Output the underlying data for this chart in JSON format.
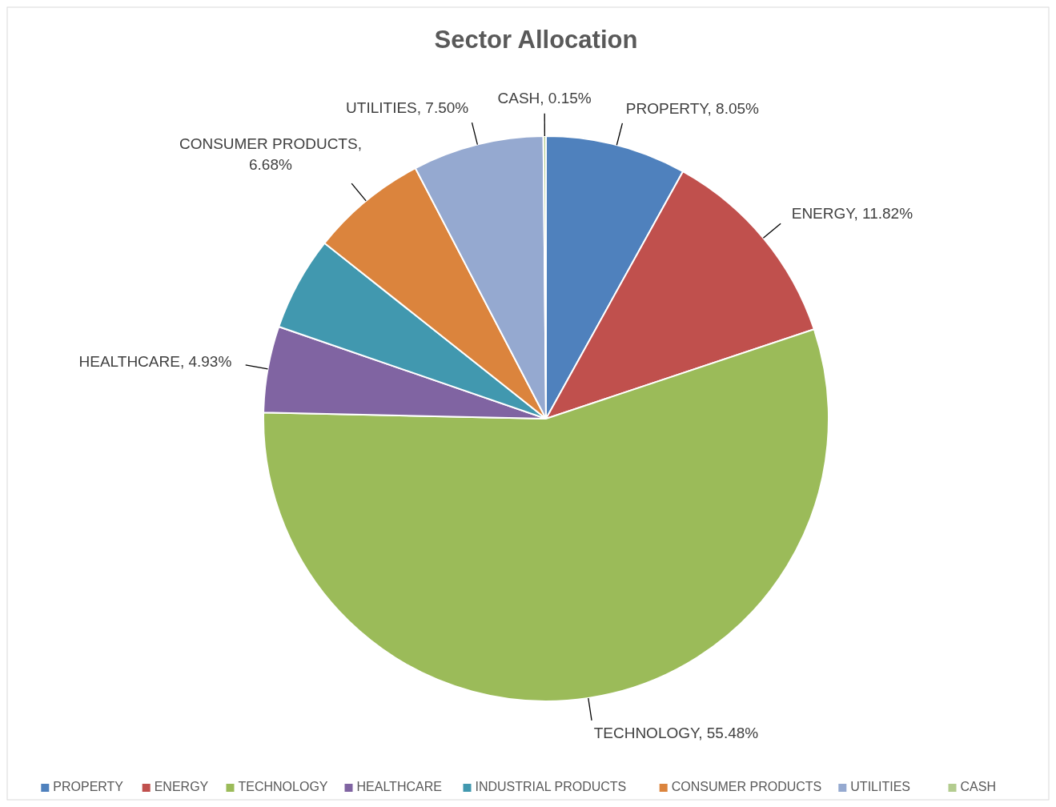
{
  "chart_data": {
    "type": "pie",
    "title": "Sector Allocation",
    "categories": [
      "PROPERTY",
      "ENERGY",
      "TECHNOLOGY",
      "HEALTHCARE",
      "INDUSTRIAL PRODUCTS",
      "CONSUMER PRODUCTS",
      "UTILITIES",
      "CASH"
    ],
    "values": [
      8.05,
      11.82,
      55.48,
      4.93,
      5.39,
      6.68,
      7.5,
      0.15
    ],
    "value_labels": [
      "PROPERTY, 8.05%",
      "ENERGY, 11.82%",
      "TECHNOLOGY, 55.48%",
      "HEALTHCARE, 4.93%",
      null,
      "CONSUMER PRODUCTS, 6.68%",
      "UTILITIES, 7.50%",
      "CASH, 0.15%"
    ],
    "colors": [
      "#4f81bd",
      "#c0504d",
      "#9bbb59",
      "#8064a2",
      "#4198af",
      "#db843d",
      "#95a9d0",
      "#b3cc8f"
    ],
    "legend": "bottom"
  }
}
